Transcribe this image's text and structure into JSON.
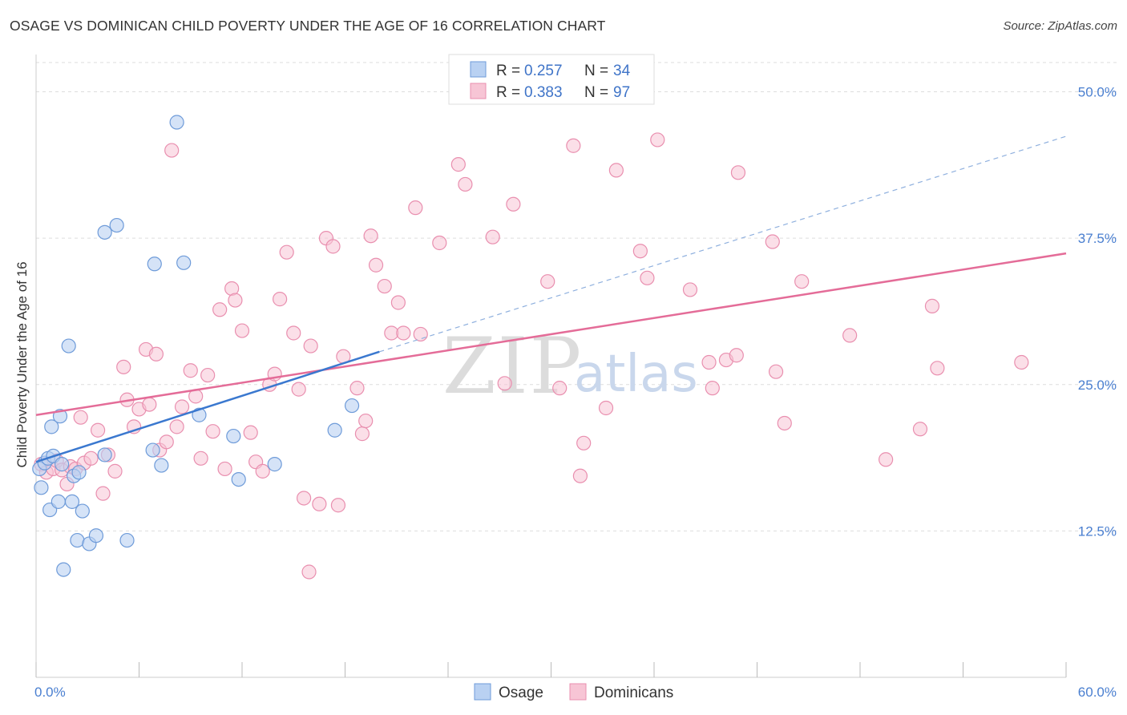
{
  "header": {
    "title": "OSAGE VS DOMINICAN CHILD POVERTY UNDER THE AGE OF 16 CORRELATION CHART",
    "source": "Source: ZipAtlas.com"
  },
  "legend": {
    "r_label": "R = ",
    "n_label": "N = ",
    "series": [
      {
        "r": "0.257",
        "n": "34"
      },
      {
        "r": "0.383",
        "n": "97"
      }
    ]
  },
  "bottom_legend": [
    "Osage",
    "Dominicans"
  ],
  "watermark": {
    "a": "ZIP",
    "b": "atlas"
  },
  "colors": {
    "osage_fill": "#b9d1f2",
    "osage_stroke": "#6e9bd9",
    "osage_line": "#3a78cf",
    "dom_fill": "#f7c5d5",
    "dom_stroke": "#e98faf",
    "dom_line": "#e46c98",
    "grid": "#dddddd",
    "tick_label": "#4a7fd0"
  },
  "chart_data": {
    "type": "scatter",
    "title": "OSAGE VS DOMINICAN CHILD POVERTY UNDER THE AGE OF 16 CORRELATION CHART",
    "xlabel": "",
    "ylabel": "Child Poverty Under the Age of 16",
    "xlim": [
      0,
      60
    ],
    "ylim": [
      0,
      52.5
    ],
    "x_tick_labels": [
      "0.0%",
      "60.0%"
    ],
    "y_ticks": [
      12.5,
      25.0,
      37.5,
      50.0
    ],
    "y_tick_labels": [
      "12.5%",
      "25.0%",
      "37.5%",
      "50.0%"
    ],
    "grid": true,
    "legend_position": "top-center",
    "series": [
      {
        "name": "Osage",
        "r": 0.257,
        "n": 34,
        "trend": {
          "x0": 0,
          "y0": 18.4,
          "x1": 20,
          "y1": 27.8,
          "dashed_to_x": 60,
          "dashed_to_y": 46.2
        },
        "points": [
          [
            0.2,
            17.8
          ],
          [
            0.5,
            18.3
          ],
          [
            0.3,
            16.2
          ],
          [
            0.7,
            18.7
          ],
          [
            1.0,
            18.9
          ],
          [
            0.9,
            21.4
          ],
          [
            1.4,
            22.3
          ],
          [
            1.5,
            18.2
          ],
          [
            1.9,
            28.3
          ],
          [
            2.2,
            17.2
          ],
          [
            2.5,
            17.5
          ],
          [
            0.8,
            14.3
          ],
          [
            1.3,
            15.0
          ],
          [
            2.1,
            15.0
          ],
          [
            2.7,
            14.2
          ],
          [
            2.4,
            11.7
          ],
          [
            3.1,
            11.4
          ],
          [
            3.5,
            12.1
          ],
          [
            1.6,
            9.2
          ],
          [
            5.3,
            11.7
          ],
          [
            4.0,
            38.0
          ],
          [
            4.7,
            38.6
          ],
          [
            6.9,
            35.3
          ],
          [
            8.6,
            35.4
          ],
          [
            8.2,
            47.4
          ],
          [
            4.0,
            19.0
          ],
          [
            6.8,
            19.4
          ],
          [
            7.3,
            18.1
          ],
          [
            9.5,
            22.4
          ],
          [
            11.5,
            20.6
          ],
          [
            11.8,
            16.9
          ],
          [
            13.9,
            18.2
          ],
          [
            17.4,
            21.1
          ],
          [
            18.4,
            23.2
          ]
        ]
      },
      {
        "name": "Dominicans",
        "r": 0.383,
        "n": 97,
        "trend": {
          "x0": 0,
          "y0": 22.4,
          "x1": 60,
          "y1": 36.2
        },
        "points": [
          [
            0.3,
            18.2
          ],
          [
            0.6,
            17.5
          ],
          [
            1.0,
            17.8
          ],
          [
            1.2,
            18.5
          ],
          [
            1.5,
            17.7
          ],
          [
            1.8,
            16.5
          ],
          [
            2.0,
            18.0
          ],
          [
            2.3,
            17.8
          ],
          [
            2.6,
            22.2
          ],
          [
            2.8,
            18.3
          ],
          [
            3.2,
            18.7
          ],
          [
            3.6,
            21.1
          ],
          [
            3.9,
            15.7
          ],
          [
            4.2,
            19.0
          ],
          [
            4.6,
            17.6
          ],
          [
            5.1,
            26.5
          ],
          [
            5.3,
            23.7
          ],
          [
            5.7,
            21.4
          ],
          [
            6.0,
            22.9
          ],
          [
            6.4,
            28.0
          ],
          [
            6.6,
            23.3
          ],
          [
            7.0,
            27.6
          ],
          [
            7.2,
            19.4
          ],
          [
            7.6,
            20.1
          ],
          [
            7.9,
            45.0
          ],
          [
            8.2,
            21.4
          ],
          [
            8.5,
            23.1
          ],
          [
            9.0,
            26.2
          ],
          [
            9.3,
            24.0
          ],
          [
            9.6,
            18.7
          ],
          [
            10.0,
            25.8
          ],
          [
            10.3,
            21.0
          ],
          [
            10.7,
            31.4
          ],
          [
            11.0,
            17.8
          ],
          [
            11.4,
            33.2
          ],
          [
            11.6,
            32.2
          ],
          [
            12.0,
            29.6
          ],
          [
            12.5,
            20.9
          ],
          [
            12.8,
            18.4
          ],
          [
            13.2,
            17.6
          ],
          [
            13.6,
            25.0
          ],
          [
            13.9,
            25.9
          ],
          [
            14.2,
            32.3
          ],
          [
            14.6,
            36.3
          ],
          [
            15.0,
            29.4
          ],
          [
            15.3,
            24.6
          ],
          [
            15.6,
            15.3
          ],
          [
            16.0,
            28.3
          ],
          [
            16.5,
            14.8
          ],
          [
            16.9,
            37.5
          ],
          [
            17.3,
            36.8
          ],
          [
            17.6,
            14.7
          ],
          [
            17.9,
            27.4
          ],
          [
            18.7,
            24.7
          ],
          [
            19.0,
            20.8
          ],
          [
            19.2,
            21.9
          ],
          [
            19.5,
            37.7
          ],
          [
            19.8,
            35.2
          ],
          [
            20.3,
            33.4
          ],
          [
            20.7,
            29.4
          ],
          [
            21.1,
            32.0
          ],
          [
            21.4,
            29.4
          ],
          [
            22.1,
            40.1
          ],
          [
            22.4,
            29.3
          ],
          [
            23.5,
            37.1
          ],
          [
            24.6,
            43.8
          ],
          [
            25.0,
            42.1
          ],
          [
            26.6,
            37.6
          ],
          [
            27.3,
            25.1
          ],
          [
            27.8,
            40.4
          ],
          [
            29.8,
            33.8
          ],
          [
            30.5,
            24.7
          ],
          [
            31.3,
            45.4
          ],
          [
            31.7,
            17.2
          ],
          [
            31.9,
            20.0
          ],
          [
            33.2,
            23.0
          ],
          [
            33.8,
            43.3
          ],
          [
            35.2,
            36.4
          ],
          [
            35.6,
            34.1
          ],
          [
            36.2,
            45.9
          ],
          [
            38.1,
            33.1
          ],
          [
            39.2,
            26.9
          ],
          [
            39.4,
            24.7
          ],
          [
            40.2,
            27.1
          ],
          [
            40.8,
            27.5
          ],
          [
            40.9,
            43.1
          ],
          [
            42.9,
            37.2
          ],
          [
            43.1,
            26.1
          ],
          [
            43.6,
            21.7
          ],
          [
            44.6,
            33.8
          ],
          [
            47.4,
            29.2
          ],
          [
            49.5,
            18.6
          ],
          [
            51.5,
            21.2
          ],
          [
            52.2,
            31.7
          ],
          [
            52.5,
            26.4
          ],
          [
            57.4,
            26.9
          ],
          [
            15.9,
            9.0
          ]
        ]
      }
    ]
  }
}
